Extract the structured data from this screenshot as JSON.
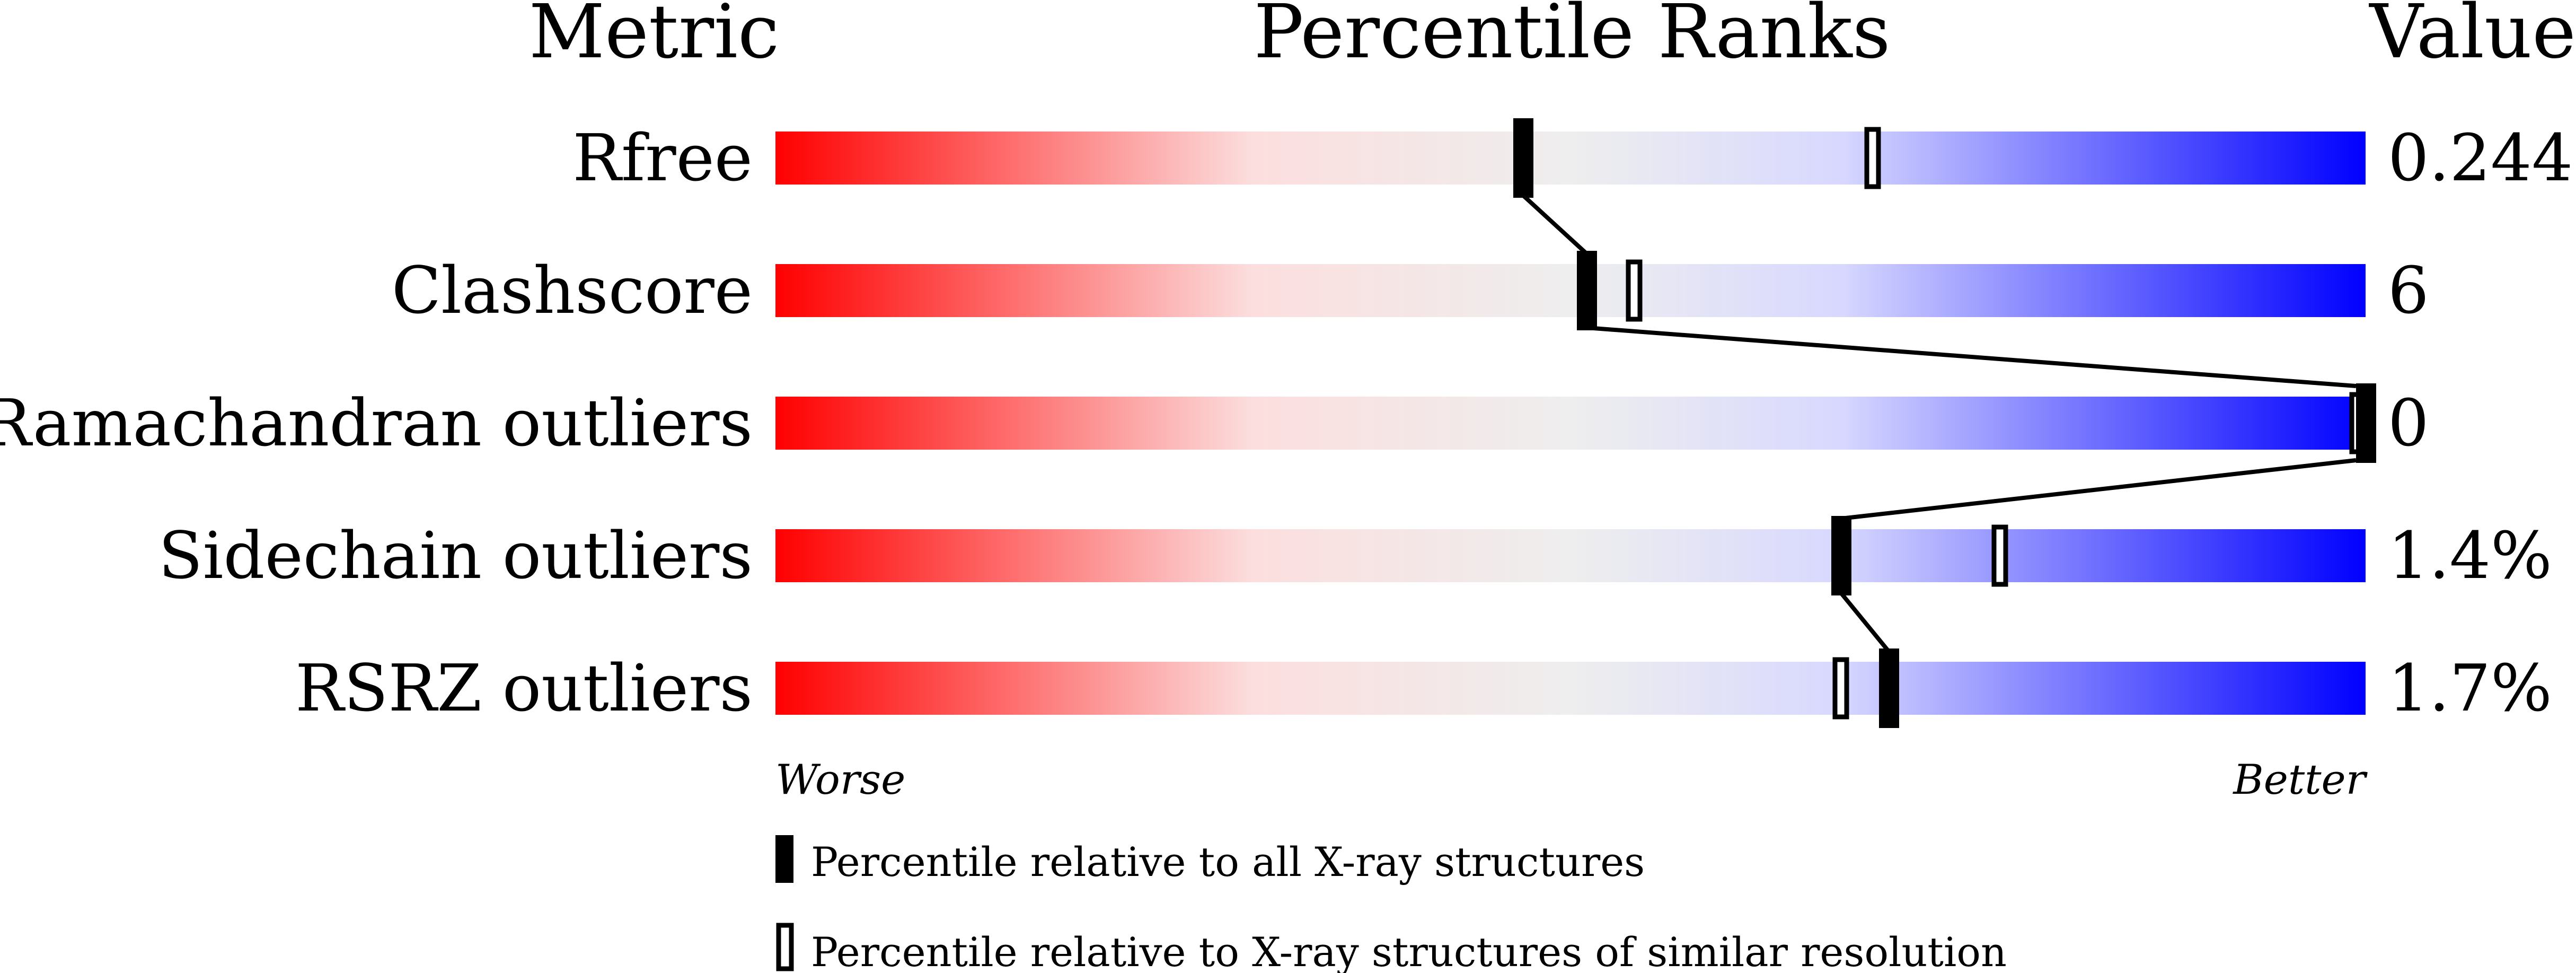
{
  "chart_data": {
    "type": "percentile-slider",
    "headers": {
      "metric": "Metric",
      "ranks": "Percentile Ranks",
      "value": "Value"
    },
    "xlim": [
      0,
      100
    ],
    "axis_labels": {
      "left": "Worse",
      "right": "Better"
    },
    "colors": {
      "worse": "#ff0000",
      "middle": "#eeeeee",
      "better": "#0000ff",
      "marker": "#000000"
    },
    "metrics": [
      {
        "name": "Rfree",
        "value": "0.244",
        "percentile_all": 47,
        "percentile_similar": 69
      },
      {
        "name": "Clashscore",
        "value": "6",
        "percentile_all": 51,
        "percentile_similar": 54
      },
      {
        "name": "Ramachandran outliers",
        "value": "0",
        "percentile_all": 100,
        "percentile_similar": 100
      },
      {
        "name": "Sidechain outliers",
        "value": "1.4%",
        "percentile_all": 67,
        "percentile_similar": 77
      },
      {
        "name": "RSRZ outliers",
        "value": "1.7%",
        "percentile_all": 70,
        "percentile_similar": 67
      }
    ],
    "legend": [
      {
        "marker": "filled",
        "label": "Percentile relative to all X-ray structures"
      },
      {
        "marker": "open",
        "label": "Percentile relative to X-ray structures of similar resolution"
      }
    ]
  }
}
